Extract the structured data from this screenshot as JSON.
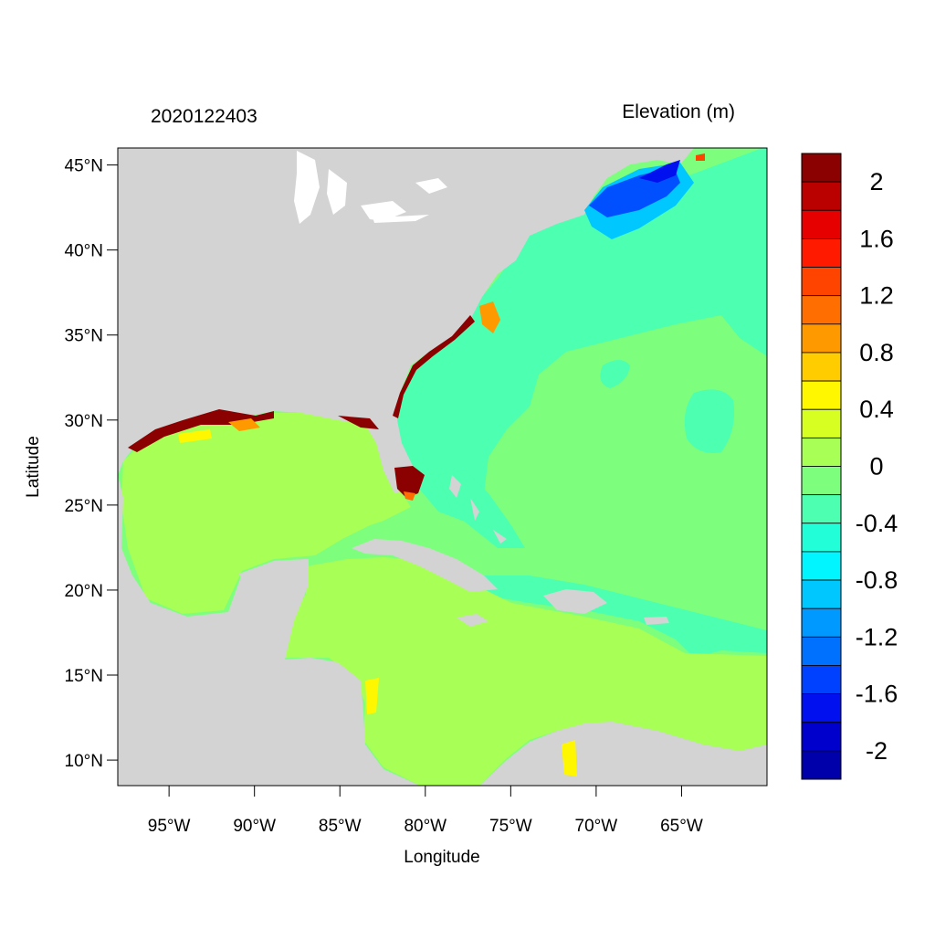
{
  "header": {
    "timestamp": "2020122403",
    "variable": "Elevation (m)"
  },
  "map": {
    "xlabel": "Longitude",
    "ylabel": "Latitude",
    "lon_range": [
      -98.0,
      -60.0
    ],
    "lat_range": [
      8.5,
      46.0
    ],
    "lat_ticks": [
      {
        "value": 45,
        "label": "45°N"
      },
      {
        "value": 40,
        "label": "40°N"
      },
      {
        "value": 35,
        "label": "35°N"
      },
      {
        "value": 30,
        "label": "30°N"
      },
      {
        "value": 25,
        "label": "25°N"
      },
      {
        "value": 20,
        "label": "20°N"
      },
      {
        "value": 15,
        "label": "15°N"
      },
      {
        "value": 10,
        "label": "10°N"
      }
    ],
    "lon_ticks": [
      {
        "value": -95,
        "label": "95°W"
      },
      {
        "value": -90,
        "label": "90°W"
      },
      {
        "value": -85,
        "label": "85°W"
      },
      {
        "value": -80,
        "label": "80°W"
      },
      {
        "value": -75,
        "label": "75°W"
      },
      {
        "value": -70,
        "label": "70°W"
      },
      {
        "value": -65,
        "label": "65°W"
      }
    ],
    "land_color": "#d3d3d3",
    "ocean_colors": {
      "atlantic": "#7dff7d",
      "gulf_caribbean": "#a8ff55",
      "shelf": "#4dffb0",
      "gulf_of_maine": "#0050ff",
      "surge_high": "#8b0000",
      "surge_mid": "#ff8c00"
    }
  },
  "colorbar": {
    "levels": [
      {
        "color": "#8b0000"
      },
      {
        "color": "#bb0000"
      },
      {
        "color": "#e60000"
      },
      {
        "color": "#ff1a00"
      },
      {
        "color": "#ff4400"
      },
      {
        "color": "#ff6e00"
      },
      {
        "color": "#ff9900"
      },
      {
        "color": "#ffcc00"
      },
      {
        "color": "#fff700"
      },
      {
        "color": "#d8ff22"
      },
      {
        "color": "#a8ff55"
      },
      {
        "color": "#7dff7d"
      },
      {
        "color": "#4dffb0"
      },
      {
        "color": "#22ffd8"
      },
      {
        "color": "#00f5ff"
      },
      {
        "color": "#00c8ff"
      },
      {
        "color": "#0099ff"
      },
      {
        "color": "#0070ff"
      },
      {
        "color": "#0040ff"
      },
      {
        "color": "#0010ee"
      },
      {
        "color": "#0000cc"
      },
      {
        "color": "#0000aa"
      }
    ],
    "labels": [
      "2",
      "1.6",
      "1.2",
      "0.8",
      "0.4",
      "0",
      "-0.4",
      "-0.8",
      "-1.2",
      "-1.6",
      "-2"
    ]
  }
}
